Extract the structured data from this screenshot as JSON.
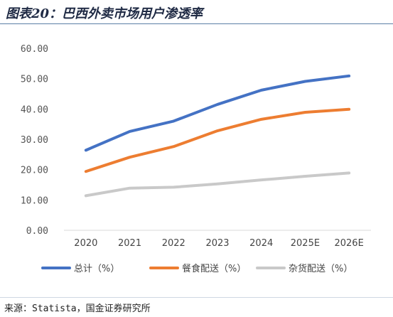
{
  "header": {
    "title": "图表20：巴西外卖市场用户渗透率"
  },
  "source": {
    "text": "来源：Statista，国金证券研究所"
  },
  "chart_data": {
    "type": "line",
    "title": "",
    "xlabel": "",
    "ylabel": "",
    "ylim": [
      0,
      60
    ],
    "yticks": [
      "0.00",
      "10.00",
      "20.00",
      "30.00",
      "40.00",
      "50.00",
      "60.00"
    ],
    "categories": [
      "2020",
      "2021",
      "2022",
      "2023",
      "2024",
      "2025E",
      "2026E"
    ],
    "grid": false,
    "legend_position": "bottom",
    "series": [
      {
        "name": "总计（%）",
        "color": "#4472c4",
        "values": [
          26.4,
          32.6,
          36.0,
          41.5,
          46.2,
          49.1,
          50.9
        ]
      },
      {
        "name": "餐食配送（%）",
        "color": "#ed7d31",
        "values": [
          19.4,
          24.1,
          27.6,
          32.8,
          36.6,
          38.9,
          39.9
        ]
      },
      {
        "name": "杂货配送（%）",
        "color": "#c9c9c9",
        "values": [
          11.4,
          13.9,
          14.2,
          15.3,
          16.6,
          17.8,
          18.9
        ]
      }
    ]
  }
}
